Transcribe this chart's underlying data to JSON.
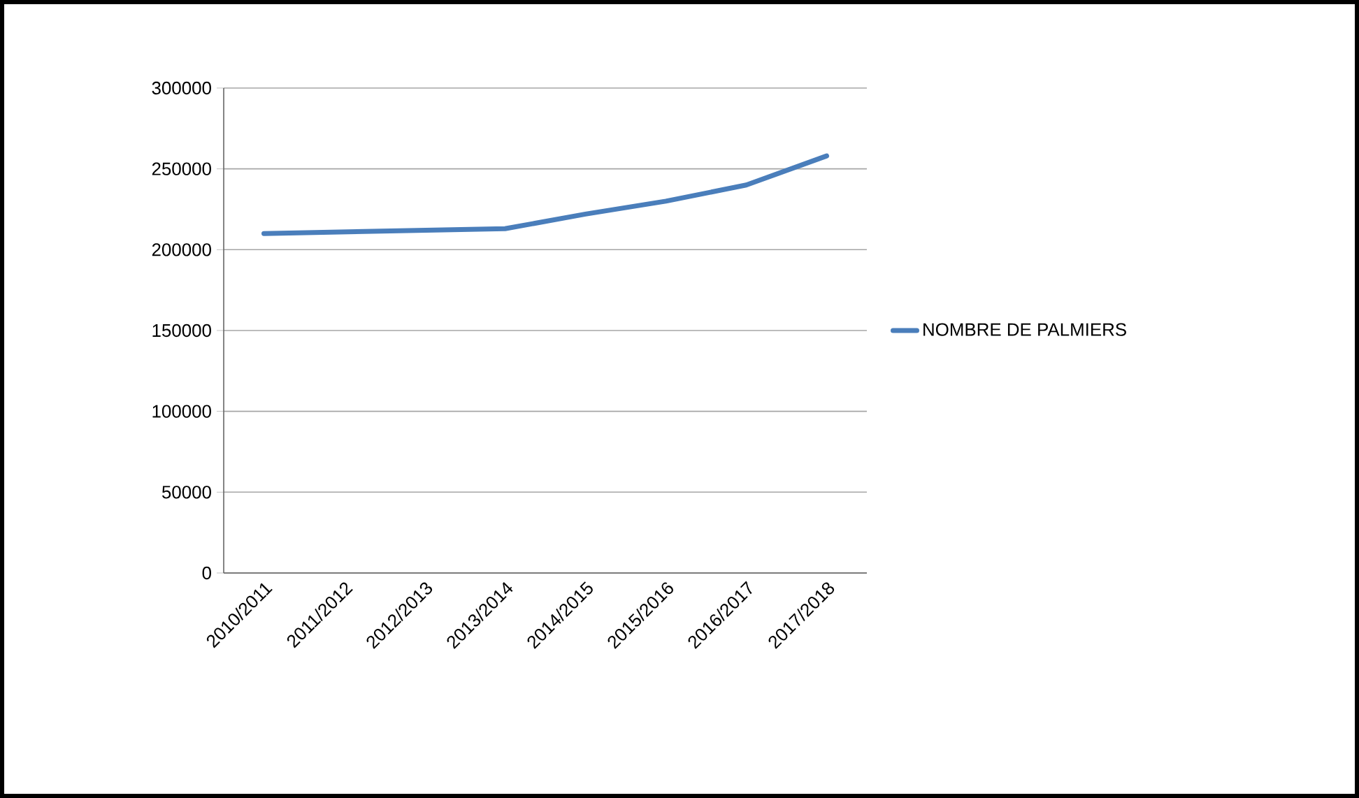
{
  "chart_data": {
    "type": "line",
    "categories": [
      "2010/2011",
      "2011/2012",
      "2012/2013",
      "2013/2014",
      "2014/2015",
      "2015/2016",
      "2016/2017",
      "2017/2018"
    ],
    "series": [
      {
        "name": "NOMBRE DE PALMIERS",
        "color": "#4a7ebb",
        "values": [
          210000,
          211000,
          212000,
          213000,
          222000,
          230000,
          240000,
          258000
        ]
      }
    ],
    "ylim": [
      0,
      300000
    ],
    "yticks": [
      0,
      50000,
      100000,
      150000,
      200000,
      250000,
      300000
    ],
    "grid": "y",
    "legend": "right",
    "marker": "none",
    "line_style": "solid"
  }
}
